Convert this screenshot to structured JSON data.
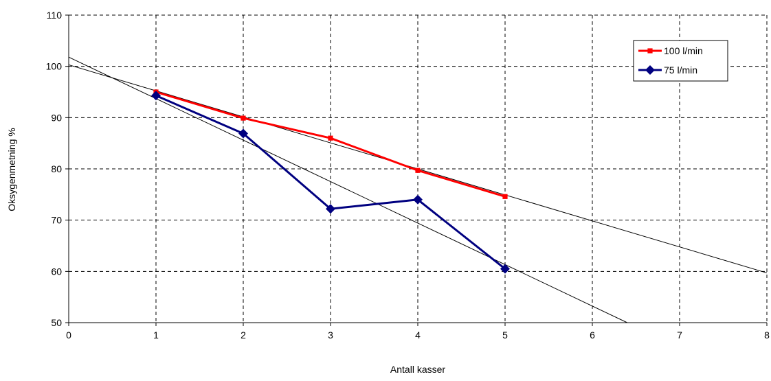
{
  "chart_data": {
    "type": "line",
    "title": "",
    "xlabel": "Antall kasser",
    "ylabel": "Oksygenmetning %",
    "xlim": [
      0,
      8
    ],
    "ylim": [
      50,
      110
    ],
    "x_ticks": [
      "0",
      "1",
      "2",
      "3",
      "4",
      "5",
      "6",
      "7",
      "8"
    ],
    "y_ticks": [
      "50",
      "60",
      "70",
      "80",
      "90",
      "100",
      "110"
    ],
    "grid": true,
    "grid_style": "dashed",
    "legend_position": "top-right",
    "series": [
      {
        "name": "100 l/min",
        "color": "#ff0000",
        "marker": "square",
        "x": [
          1,
          2,
          3,
          4,
          5
        ],
        "y": [
          95.0,
          89.9,
          86.0,
          79.7,
          74.6
        ]
      },
      {
        "name": "75 l/min",
        "color": "#000080",
        "marker": "diamond",
        "x": [
          1,
          2,
          3,
          4,
          5
        ],
        "y": [
          94.3,
          86.9,
          72.2,
          74.0,
          60.5
        ]
      }
    ],
    "trendlines": [
      {
        "series": "100 l/min",
        "color": "#000000",
        "x": [
          0,
          8
        ],
        "y": [
          100.3,
          59.7
        ]
      },
      {
        "series": "75 l/min",
        "color": "#000000",
        "x": [
          0,
          6.4
        ],
        "y": [
          101.8,
          50.0
        ]
      }
    ]
  }
}
